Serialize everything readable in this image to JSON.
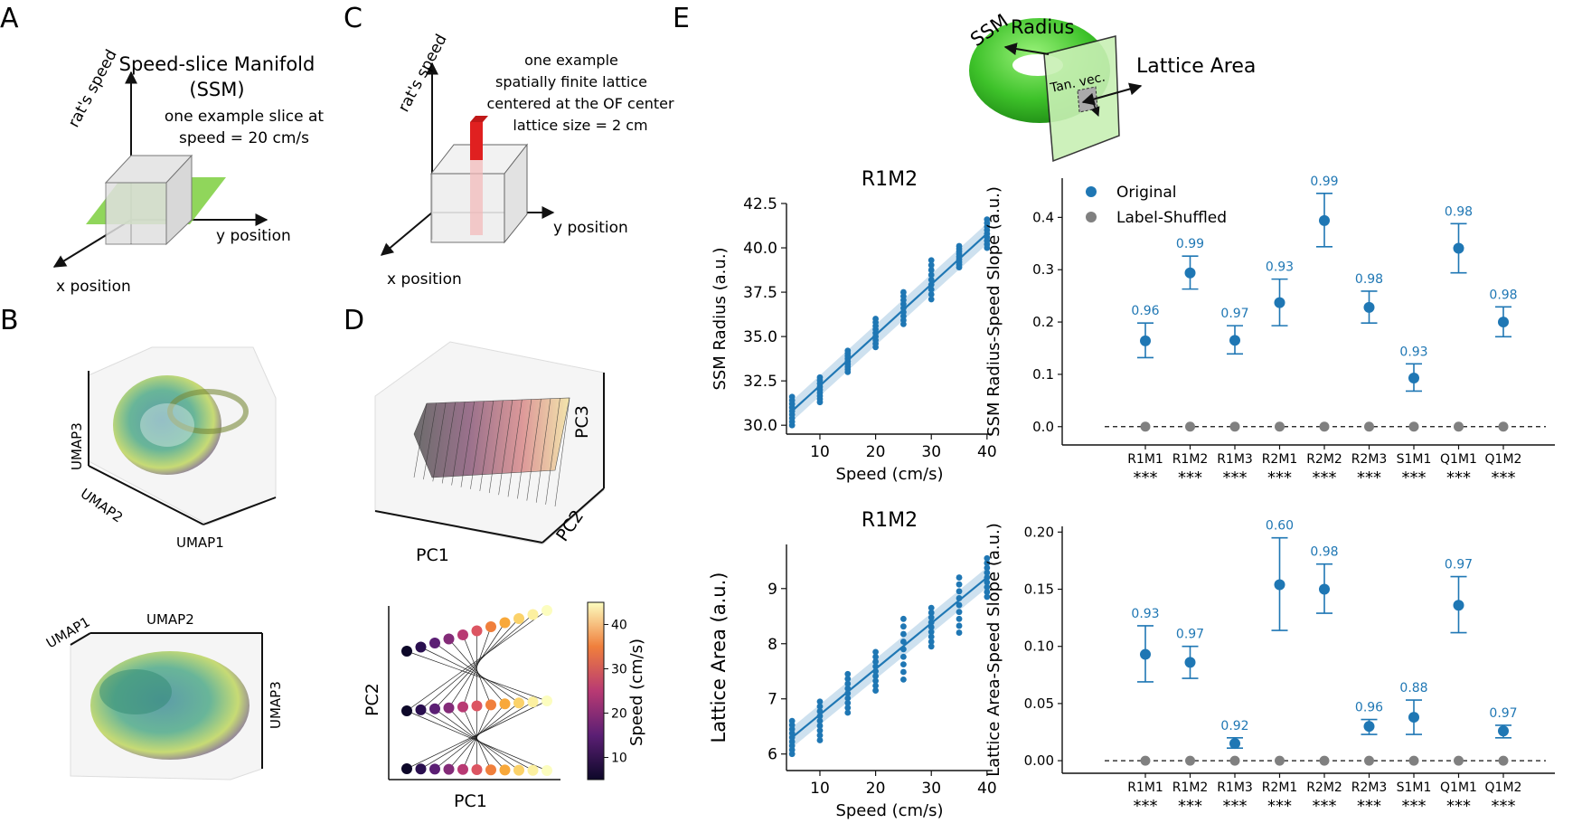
{
  "panels": {
    "A": {
      "letter": "A",
      "title": "Speed-slice Manifold",
      "title2": "(SSM)",
      "note1": "one example slice at",
      "note2": "speed = 20 cm/s",
      "axis_speed": "rat's speed",
      "axis_y": "y position",
      "axis_x": "x position"
    },
    "B": {
      "letter": "B",
      "umap1": "UMAP1",
      "umap2": "UMAP2",
      "umap3": "UMAP3"
    },
    "C": {
      "letter": "C",
      "note1": "one example",
      "note2": "spatially finite lattice",
      "note3": "centered at the OF center",
      "note4": "lattice size = 2 cm",
      "axis_speed": "rat's speed",
      "axis_y": "y position",
      "axis_x": "x position"
    },
    "D": {
      "letter": "D",
      "pc1": "PC1",
      "pc2": "PC2",
      "pc3": "PC3",
      "colorbar_label": "Speed (cm/s)",
      "colorbar_ticks": [
        "10",
        "20",
        "30",
        "40"
      ]
    },
    "E": {
      "letter": "E",
      "ssm": "SSM",
      "radius": "Radius",
      "lattice_area": "Lattice Area",
      "tan_vec": "Tan. vec."
    }
  },
  "colors": {
    "blue": "#1f77b4",
    "gray": "#808080",
    "green": "#55c83c",
    "red": "#e02020"
  },
  "chart_data": [
    {
      "type": "scatter",
      "title": "R1M2",
      "xlabel": "Speed (cm/s)",
      "ylabel": "SSM Radius (a.u.)",
      "xlim": [
        4,
        41
      ],
      "ylim": [
        29.5,
        42.5
      ],
      "xticks": [
        "10",
        "20",
        "30",
        "40"
      ],
      "yticks": [
        "30.0",
        "32.5",
        "35.0",
        "37.5",
        "40.0",
        "42.5"
      ],
      "x": [
        5,
        10,
        15,
        20,
        25,
        30,
        35,
        40
      ],
      "y_center": [
        30.8,
        32.0,
        33.6,
        35.2,
        36.6,
        38.2,
        39.5,
        40.8
      ],
      "y_spread": [
        0.8,
        0.7,
        0.6,
        0.8,
        0.9,
        1.1,
        0.6,
        0.8
      ],
      "fit_start": [
        5,
        30.8
      ],
      "fit_end": [
        40,
        40.8
      ]
    },
    {
      "type": "scatter",
      "title": "R1M2",
      "xlabel": "Speed (cm/s)",
      "ylabel": "Lattice Area (a.u.)",
      "xlim": [
        4,
        41
      ],
      "ylim": [
        5.7,
        9.8
      ],
      "xticks": [
        "10",
        "20",
        "30",
        "40"
      ],
      "yticks": [
        "6",
        "7",
        "8",
        "9"
      ],
      "x": [
        5,
        10,
        15,
        20,
        25,
        30,
        35,
        40
      ],
      "y_center": [
        6.3,
        6.6,
        7.1,
        7.5,
        7.9,
        8.3,
        8.7,
        9.2
      ],
      "y_spread": [
        0.3,
        0.35,
        0.35,
        0.35,
        0.55,
        0.35,
        0.5,
        0.35
      ],
      "fit_start": [
        5,
        6.3
      ],
      "fit_end": [
        40,
        9.2
      ]
    },
    {
      "type": "errorbar",
      "ylabel": "SSM Radius-Speed Slope (a.u.)",
      "ylim": [
        -0.035,
        0.475
      ],
      "yticks": [
        "0.0",
        "0.1",
        "0.2",
        "0.3",
        "0.4"
      ],
      "categories": [
        "R1M1",
        "R1M2",
        "R1M3",
        "R2M1",
        "R2M2",
        "R2M3",
        "S1M1",
        "Q1M1",
        "Q1M2"
      ],
      "values": [
        0.164,
        0.294,
        0.165,
        0.237,
        0.394,
        0.228,
        0.093,
        0.341,
        0.2
      ],
      "err_low": [
        0.132,
        0.263,
        0.139,
        0.193,
        0.344,
        0.198,
        0.068,
        0.294,
        0.172
      ],
      "err_high": [
        0.198,
        0.326,
        0.193,
        0.282,
        0.446,
        0.259,
        0.12,
        0.388,
        0.229
      ],
      "annotations": [
        "0.96",
        "0.99",
        "0.97",
        "0.93",
        "0.99",
        "0.98",
        "0.93",
        "0.98",
        "0.98"
      ],
      "shuffled": [
        0,
        0,
        0,
        0,
        0,
        0,
        0,
        0,
        0
      ],
      "significance": [
        "***",
        "***",
        "***",
        "***",
        "***",
        "***",
        "***",
        "***",
        "***"
      ],
      "legend": [
        "Original",
        "Label-Shuffled"
      ]
    },
    {
      "type": "errorbar",
      "ylabel": "Lattice Area-Speed Slope (a.u.)",
      "ylim": [
        -0.011,
        0.205
      ],
      "yticks": [
        "0.00",
        "0.05",
        "0.10",
        "0.15",
        "0.20"
      ],
      "categories": [
        "R1M1",
        "R1M2",
        "R1M3",
        "R2M1",
        "R2M2",
        "R2M3",
        "S1M1",
        "Q1M1",
        "Q1M2"
      ],
      "values": [
        0.093,
        0.086,
        0.015,
        0.154,
        0.15,
        0.03,
        0.038,
        0.136,
        0.026
      ],
      "err_low": [
        0.069,
        0.072,
        0.011,
        0.114,
        0.129,
        0.023,
        0.023,
        0.112,
        0.02
      ],
      "err_high": [
        0.118,
        0.1,
        0.02,
        0.195,
        0.172,
        0.036,
        0.053,
        0.161,
        0.031
      ],
      "annotations": [
        "0.93",
        "0.97",
        "0.92",
        "0.60",
        "0.98",
        "0.96",
        "0.88",
        "0.97",
        "0.97"
      ],
      "shuffled": [
        0,
        0,
        0,
        0,
        0,
        0,
        0,
        0,
        0
      ],
      "significance": [
        "***",
        "***",
        "***",
        "***",
        "***",
        "***",
        "***",
        "***",
        "***"
      ]
    }
  ]
}
